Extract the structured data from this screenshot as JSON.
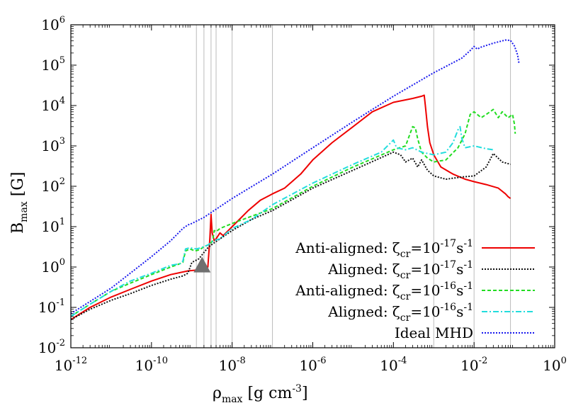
{
  "chart_data": {
    "type": "line",
    "title": "",
    "xlabel": {
      "base": "ρ",
      "sub": "max",
      "rest": " [g cm",
      "sup": "-3",
      "end": "]"
    },
    "ylabel": {
      "base": "B",
      "sub": "max",
      "rest": " [G]"
    },
    "x_scale": "log",
    "y_scale": "log",
    "xlim": [
      1e-12,
      1
    ],
    "ylim": [
      0.01,
      1000000
    ],
    "x_ticks": [
      {
        "value": 1e-12,
        "base": "10",
        "exp": "-12"
      },
      {
        "value": 1e-10,
        "base": "10",
        "exp": "-10"
      },
      {
        "value": 1e-08,
        "base": "10",
        "exp": "-8"
      },
      {
        "value": 1e-06,
        "base": "10",
        "exp": "-6"
      },
      {
        "value": 0.0001,
        "base": "10",
        "exp": "-4"
      },
      {
        "value": 0.01,
        "base": "10",
        "exp": "-2"
      },
      {
        "value": 1,
        "base": "10",
        "exp": "0"
      }
    ],
    "y_ticks": [
      {
        "value": 0.01,
        "base": "10",
        "exp": "-2"
      },
      {
        "value": 0.1,
        "base": "10",
        "exp": "-1"
      },
      {
        "value": 1,
        "base": "10",
        "exp": "0"
      },
      {
        "value": 10,
        "base": "10",
        "exp": "1"
      },
      {
        "value": 100,
        "base": "10",
        "exp": "2"
      },
      {
        "value": 1000,
        "base": "10",
        "exp": "3"
      },
      {
        "value": 10000,
        "base": "10",
        "exp": "4"
      },
      {
        "value": 100000,
        "base": "10",
        "exp": "5"
      },
      {
        "value": 1000000,
        "base": "10",
        "exp": "6"
      }
    ],
    "vertical_lines_x": [
      1.3e-09,
      2e-09,
      3e-09,
      4e-09,
      1e-08,
      1e-07,
      0.001,
      0.01,
      0.08
    ],
    "grid": false,
    "legend_position": "bottom-right",
    "marker": {
      "shape": "triangle",
      "x": 1.8e-09,
      "y": 1.1,
      "color": "#707070"
    },
    "series": [
      {
        "name": {
          "pre": "Anti-aligned: ζ",
          "sub": "cr",
          "mid": "=10",
          "sup1": "-17",
          "s": "s",
          "sup2": "-1"
        },
        "color": "#ee0000",
        "dash": "solid",
        "points": [
          [
            1e-12,
            0.05
          ],
          [
            3e-12,
            0.1
          ],
          [
            1e-11,
            0.18
          ],
          [
            3e-11,
            0.28
          ],
          [
            1e-10,
            0.45
          ],
          [
            3e-10,
            0.65
          ],
          [
            8e-10,
            0.8
          ],
          [
            1.5e-09,
            0.85
          ],
          [
            2e-09,
            0.9
          ],
          [
            2.5e-09,
            1.0
          ],
          [
            2.8e-09,
            5
          ],
          [
            3e-09,
            20
          ],
          [
            3.2e-09,
            7
          ],
          [
            3.6e-09,
            4.5
          ],
          [
            4e-09,
            5
          ],
          [
            5e-09,
            7
          ],
          [
            6e-09,
            6
          ],
          [
            7e-09,
            7
          ],
          [
            1e-08,
            10
          ],
          [
            1.5e-08,
            15
          ],
          [
            2.5e-08,
            25
          ],
          [
            5e-08,
            45
          ],
          [
            1e-07,
            65
          ],
          [
            2e-07,
            90
          ],
          [
            5e-07,
            200
          ],
          [
            1e-06,
            450
          ],
          [
            3e-06,
            1200
          ],
          [
            1e-05,
            3000
          ],
          [
            3e-05,
            7000
          ],
          [
            0.0001,
            12000
          ],
          [
            0.0003,
            15000
          ],
          [
            0.0005,
            17000
          ],
          [
            0.00058,
            18000
          ],
          [
            0.00062,
            10000
          ],
          [
            0.0007,
            3000
          ],
          [
            0.0008,
            1200
          ],
          [
            0.001,
            600
          ],
          [
            0.0015,
            300
          ],
          [
            0.003,
            200
          ],
          [
            0.006,
            150
          ],
          [
            0.01,
            130
          ],
          [
            0.02,
            110
          ],
          [
            0.04,
            90
          ],
          [
            0.06,
            65
          ],
          [
            0.07,
            55
          ],
          [
            0.08,
            50
          ]
        ]
      },
      {
        "name": {
          "pre": "Aligned: ζ",
          "sub": "cr",
          "mid": "=10",
          "sup1": "-17",
          "s": "s",
          "sup2": "-1"
        },
        "color": "#111111",
        "dash": "2,2",
        "points": [
          [
            1e-12,
            0.05
          ],
          [
            3e-12,
            0.09
          ],
          [
            1e-11,
            0.15
          ],
          [
            3e-11,
            0.22
          ],
          [
            1e-10,
            0.35
          ],
          [
            3e-10,
            0.5
          ],
          [
            6e-10,
            0.6
          ],
          [
            8e-10,
            0.7
          ],
          [
            1e-09,
            1.3
          ],
          [
            1.5e-09,
            1.6
          ],
          [
            2e-09,
            2.3
          ],
          [
            2.5e-09,
            3
          ],
          [
            3e-09,
            3.5
          ],
          [
            5e-09,
            5
          ],
          [
            1e-08,
            8
          ],
          [
            3e-08,
            15
          ],
          [
            1e-07,
            25
          ],
          [
            1e-06,
            90
          ],
          [
            1e-05,
            250
          ],
          [
            0.0001,
            700
          ],
          [
            0.00015,
            600
          ],
          [
            0.0002,
            400
          ],
          [
            0.0003,
            500
          ],
          [
            0.0004,
            300
          ],
          [
            0.0005,
            450
          ],
          [
            0.0007,
            250
          ],
          [
            0.001,
            180
          ],
          [
            0.002,
            150
          ],
          [
            0.005,
            170
          ],
          [
            0.01,
            180
          ],
          [
            0.02,
            300
          ],
          [
            0.03,
            650
          ],
          [
            0.05,
            400
          ],
          [
            0.08,
            350
          ]
        ]
      },
      {
        "name": {
          "pre": "Anti-aligned: ζ",
          "sub": "cr",
          "mid": "=10",
          "sup1": "-16",
          "s": "s",
          "sup2": "-1"
        },
        "color": "#22dd22",
        "dash": "5,3",
        "points": [
          [
            1e-12,
            0.06
          ],
          [
            3e-12,
            0.12
          ],
          [
            1e-11,
            0.25
          ],
          [
            3e-11,
            0.4
          ],
          [
            1e-10,
            0.65
          ],
          [
            3e-10,
            1.0
          ],
          [
            5e-10,
            1.2
          ],
          [
            6e-10,
            1.3
          ],
          [
            7e-10,
            2.5
          ],
          [
            9e-10,
            2.8
          ],
          [
            1.2e-09,
            2.5
          ],
          [
            1.6e-09,
            2.7
          ],
          [
            2e-09,
            3.2
          ],
          [
            2.5e-09,
            3.5
          ],
          [
            3e-09,
            4
          ],
          [
            3.3e-09,
            4.5
          ],
          [
            3.6e-09,
            8
          ],
          [
            4e-09,
            7.5
          ],
          [
            5e-09,
            9
          ],
          [
            1e-08,
            12
          ],
          [
            3e-08,
            18
          ],
          [
            1e-07,
            28
          ],
          [
            1e-06,
            100
          ],
          [
            1e-05,
            300
          ],
          [
            0.0001,
            800
          ],
          [
            0.0002,
            1000
          ],
          [
            0.0003,
            3000
          ],
          [
            0.00035,
            2800
          ],
          [
            0.0004,
            1500
          ],
          [
            0.0005,
            700
          ],
          [
            0.0007,
            500
          ],
          [
            0.001,
            400
          ],
          [
            0.002,
            450
          ],
          [
            0.004,
            900
          ],
          [
            0.006,
            2000
          ],
          [
            0.008,
            6000
          ],
          [
            0.01,
            7000
          ],
          [
            0.015,
            5000
          ],
          [
            0.02,
            6000
          ],
          [
            0.03,
            8000
          ],
          [
            0.04,
            5000
          ],
          [
            0.05,
            7000
          ],
          [
            0.07,
            5000
          ],
          [
            0.09,
            6000
          ],
          [
            0.1,
            3500
          ],
          [
            0.105,
            2000
          ]
        ]
      },
      {
        "name": {
          "pre": "Aligned: ζ",
          "sub": "cr",
          "mid": "=10",
          "sup1": "-16",
          "s": "s",
          "sup2": "-1"
        },
        "color": "#22dddd",
        "dash": "8,3,2,3",
        "points": [
          [
            1e-12,
            0.06
          ],
          [
            3e-12,
            0.12
          ],
          [
            1e-11,
            0.25
          ],
          [
            3e-11,
            0.45
          ],
          [
            1e-10,
            0.7
          ],
          [
            3e-10,
            1.1
          ],
          [
            5e-10,
            1.2
          ],
          [
            6e-10,
            1.4
          ],
          [
            7e-10,
            2.8
          ],
          [
            9e-10,
            3
          ],
          [
            1.3e-09,
            2.8
          ],
          [
            1.7e-09,
            3
          ],
          [
            2.5e-09,
            3.5
          ],
          [
            3.5e-09,
            4.5
          ],
          [
            5e-09,
            5
          ],
          [
            1e-08,
            9
          ],
          [
            3e-08,
            15
          ],
          [
            1e-07,
            35
          ],
          [
            1e-06,
            120
          ],
          [
            1e-05,
            350
          ],
          [
            5e-05,
            700
          ],
          [
            0.0001,
            1400
          ],
          [
            0.00012,
            900
          ],
          [
            0.0002,
            800
          ],
          [
            0.0003,
            900
          ],
          [
            0.0005,
            700
          ],
          [
            0.001,
            600
          ],
          [
            0.002,
            700
          ],
          [
            0.003,
            1200
          ],
          [
            0.004,
            2500
          ],
          [
            0.0045,
            3000
          ],
          [
            0.005,
            1500
          ],
          [
            0.006,
            900
          ],
          [
            0.01,
            1000
          ],
          [
            0.02,
            850
          ],
          [
            0.03,
            800
          ]
        ]
      },
      {
        "name": {
          "pre": "Ideal MHD",
          "sub": "",
          "mid": "",
          "sup1": "",
          "s": "",
          "sup2": ""
        },
        "color": "#1a1aee",
        "dash": "2,2",
        "points": [
          [
            1e-12,
            0.07
          ],
          [
            1e-11,
            0.3
          ],
          [
            1e-10,
            1.8
          ],
          [
            3e-10,
            4.5
          ],
          [
            6e-10,
            9
          ],
          [
            8e-10,
            11
          ],
          [
            1e-09,
            12
          ],
          [
            2e-09,
            17
          ],
          [
            1e-08,
            50
          ],
          [
            1e-07,
            200
          ],
          [
            1e-06,
            900
          ],
          [
            1e-05,
            4000
          ],
          [
            0.0001,
            17000
          ],
          [
            0.001,
            65000
          ],
          [
            0.005,
            150000
          ],
          [
            0.008,
            230000
          ],
          [
            0.01,
            290000
          ],
          [
            0.012,
            250000
          ],
          [
            0.015,
            280000
          ],
          [
            0.03,
            350000
          ],
          [
            0.06,
            420000
          ],
          [
            0.08,
            410000
          ],
          [
            0.1,
            300000
          ],
          [
            0.12,
            180000
          ],
          [
            0.13,
            110000
          ]
        ]
      }
    ]
  }
}
